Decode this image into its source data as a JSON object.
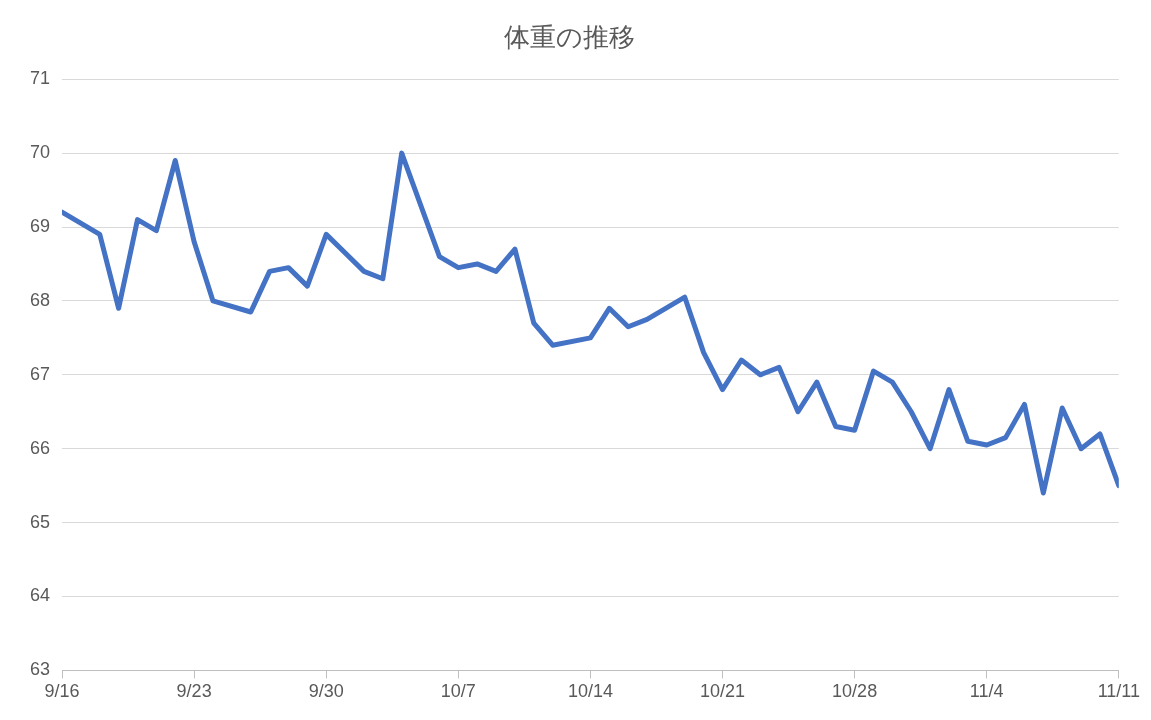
{
  "chart_data": {
    "type": "line",
    "title": "体重の推移",
    "x": [
      "--09-16",
      "--09-18",
      "--09-19",
      "--09-20",
      "--09-21",
      "--09-22",
      "--09-23",
      "--09-24",
      "--09-26",
      "--09-27",
      "--09-28",
      "--09-29",
      "--09-30",
      "--10-02",
      "--10-03",
      "--10-04",
      "--10-06",
      "--10-07",
      "--10-08",
      "--10-09",
      "--10-10",
      "--10-11",
      "--10-12",
      "--10-14",
      "--10-15",
      "--10-16",
      "--10-17",
      "--10-19",
      "--10-20",
      "--10-21",
      "--10-22",
      "--10-23",
      "--10-24",
      "--10-25",
      "--10-26",
      "--10-27",
      "--10-28",
      "--10-29",
      "--10-30",
      "--10-31",
      "--11-01",
      "--11-02",
      "--11-03",
      "--11-04",
      "--11-05",
      "--11-06",
      "--11-07",
      "--11-08",
      "--11-09",
      "--11-10",
      "--11-11"
    ],
    "series": [
      {
        "color": "#4472c4",
        "values": [
          69.2,
          68.9,
          67.9,
          69.1,
          68.95,
          69.9,
          68.8,
          68.0,
          67.85,
          68.4,
          68.45,
          68.2,
          68.9,
          68.4,
          68.3,
          70.0,
          68.6,
          68.45,
          68.5,
          68.4,
          68.7,
          67.7,
          67.4,
          67.5,
          67.9,
          67.65,
          67.75,
          68.05,
          67.3,
          66.8,
          67.2,
          67.0,
          67.1,
          66.5,
          66.9,
          66.3,
          66.25,
          67.05,
          66.9,
          66.5,
          66.0,
          66.8,
          66.1,
          66.05,
          66.15,
          66.6,
          65.4,
          66.55,
          66.0,
          66.2,
          65.5
        ]
      }
    ],
    "xlim": [
      "--09-16",
      "--11-11"
    ],
    "xticks": [
      {
        "value": "--09-16",
        "label": "9/16"
      },
      {
        "value": "--09-23",
        "label": "9/23"
      },
      {
        "value": "--09-30",
        "label": "9/30"
      },
      {
        "value": "--10-07",
        "label": "10/7"
      },
      {
        "value": "--10-14",
        "label": "10/14"
      },
      {
        "value": "--10-21",
        "label": "10/21"
      },
      {
        "value": "--10-28",
        "label": "10/28"
      },
      {
        "value": "--11-04",
        "label": "11/4"
      },
      {
        "value": "--11-11",
        "label": "11/11"
      }
    ],
    "ylim": [
      63,
      71
    ],
    "yticks": [
      63,
      64,
      65,
      66,
      67,
      68,
      69,
      70,
      71
    ],
    "grid": "y",
    "legend": false,
    "marker": "none",
    "line_style": "solid"
  }
}
